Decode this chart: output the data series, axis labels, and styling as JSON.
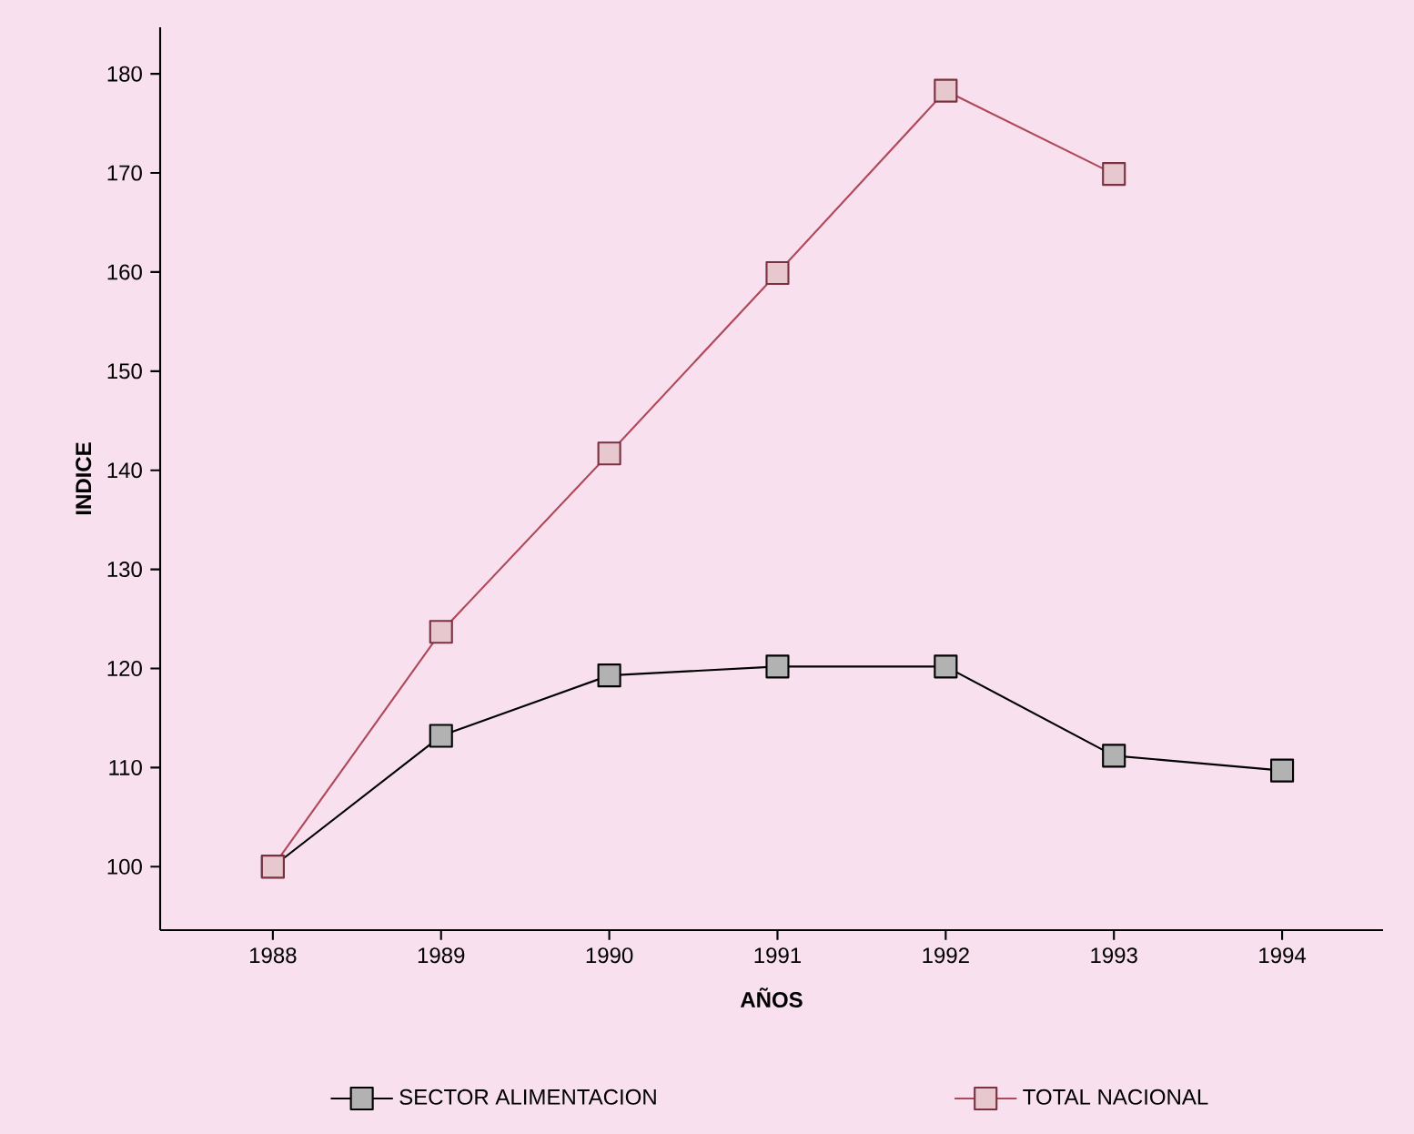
{
  "chart_data": {
    "type": "line",
    "xlabel": "AÑOS",
    "ylabel": "INDICE",
    "x": [
      1988,
      1989,
      1990,
      1991,
      1992,
      1993,
      1994
    ],
    "series": [
      {
        "name": "SECTOR ALIMENTACION",
        "color": "#000000",
        "values": [
          100,
          113.2,
          119.3,
          120.2,
          120.2,
          111.2,
          109.7
        ]
      },
      {
        "name": "TOTAL NACIONAL",
        "color": "#b0485c",
        "values": [
          100,
          123.7,
          141.7,
          159.9,
          178.3,
          169.9,
          null
        ]
      }
    ],
    "xlim": [
      1987.33,
      1994.6
    ],
    "ylim": [
      93.6,
      184.7
    ],
    "xticks": [
      1988,
      1989,
      1990,
      1991,
      1992,
      1993,
      1994
    ],
    "yticks": [
      100,
      110,
      120,
      130,
      140,
      150,
      160,
      170,
      180
    ],
    "legend": "bottom",
    "marker": "square",
    "line_style": "solid"
  }
}
